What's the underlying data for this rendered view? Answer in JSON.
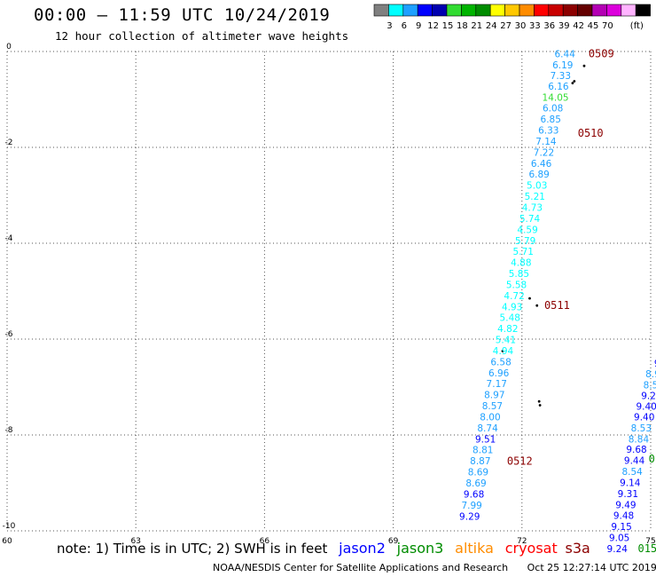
{
  "header": {
    "title": "00:00 – 11:59 UTC 10/24/2019",
    "subtitle": "12 hour collection of altimeter wave heights"
  },
  "colorbar": {
    "colors": [
      "#808080",
      "#00ffff",
      "#1ea0ff",
      "#0000ff",
      "#0000b0",
      "#32dc32",
      "#00b400",
      "#008c00",
      "#ffff00",
      "#ffc800",
      "#ff8c00",
      "#ff0000",
      "#c80000",
      "#8c0000",
      "#640000",
      "#b400b4",
      "#dc00dc",
      "#ffb4ff",
      "#000000"
    ],
    "labels": [
      "3",
      "6",
      "9",
      "12",
      "15",
      "18",
      "21",
      "24",
      "27",
      "30",
      "33",
      "36",
      "39",
      "42",
      "45",
      "70"
    ],
    "unit": "(ft)"
  },
  "chart_data": {
    "type": "scatter",
    "xlim": [
      60,
      75
    ],
    "ylim": [
      -10,
      0
    ],
    "x_ticks": [
      "60",
      "63",
      "66",
      "69",
      "72",
      "75"
    ],
    "y_ticks": [
      "0",
      "-2",
      "-4",
      "-6",
      "-8",
      "-10"
    ],
    "grid": true,
    "series": [
      {
        "name": "jason3",
        "color_key": "swh-binned",
        "points": [
          {
            "x": 73.0,
            "y": -0.05,
            "v": "6.44",
            "c": "#1ea0ff"
          },
          {
            "x": 72.95,
            "y": -0.28,
            "v": "6.19",
            "c": "#1ea0ff"
          },
          {
            "x": 72.9,
            "y": -0.5,
            "v": "7.33",
            "c": "#1ea0ff"
          },
          {
            "x": 72.85,
            "y": -0.72,
            "v": "6.16",
            "c": "#1ea0ff"
          },
          {
            "x": 72.78,
            "y": -0.95,
            "v": "14.05",
            "c": "#32dc32"
          },
          {
            "x": 72.72,
            "y": -1.18,
            "v": "6.08",
            "c": "#1ea0ff"
          },
          {
            "x": 72.67,
            "y": -1.41,
            "v": "6.85",
            "c": "#1ea0ff"
          },
          {
            "x": 72.62,
            "y": -1.64,
            "v": "6.33",
            "c": "#1ea0ff"
          },
          {
            "x": 72.56,
            "y": -1.87,
            "v": "7.14",
            "c": "#1ea0ff"
          },
          {
            "x": 72.51,
            "y": -2.1,
            "v": "7.22",
            "c": "#1ea0ff"
          },
          {
            "x": 72.45,
            "y": -2.33,
            "v": "6.46",
            "c": "#1ea0ff"
          },
          {
            "x": 72.4,
            "y": -2.56,
            "v": "6.89",
            "c": "#1ea0ff"
          },
          {
            "x": 72.35,
            "y": -2.79,
            "v": "5.03",
            "c": "#00ffff"
          },
          {
            "x": 72.3,
            "y": -3.02,
            "v": "5.21",
            "c": "#00ffff"
          },
          {
            "x": 72.24,
            "y": -3.25,
            "v": "4.73",
            "c": "#00ffff"
          },
          {
            "x": 72.18,
            "y": -3.48,
            "v": "5.74",
            "c": "#00ffff"
          },
          {
            "x": 72.13,
            "y": -3.71,
            "v": "4.59",
            "c": "#00ffff"
          },
          {
            "x": 72.08,
            "y": -3.94,
            "v": "5.79",
            "c": "#00ffff"
          },
          {
            "x": 72.03,
            "y": -4.17,
            "v": "5.71",
            "c": "#00ffff"
          },
          {
            "x": 71.98,
            "y": -4.4,
            "v": "4.88",
            "c": "#00ffff"
          },
          {
            "x": 71.93,
            "y": -4.63,
            "v": "5.85",
            "c": "#00ffff"
          },
          {
            "x": 71.87,
            "y": -4.86,
            "v": "5.58",
            "c": "#00ffff"
          },
          {
            "x": 71.82,
            "y": -5.09,
            "v": "4.72",
            "c": "#00ffff"
          },
          {
            "x": 71.77,
            "y": -5.32,
            "v": "4.93",
            "c": "#00ffff"
          },
          {
            "x": 71.72,
            "y": -5.55,
            "v": "5.48",
            "c": "#00ffff"
          },
          {
            "x": 71.67,
            "y": -5.78,
            "v": "4.82",
            "c": "#00ffff"
          },
          {
            "x": 71.62,
            "y": -6.01,
            "v": "5.41",
            "c": "#00ffff"
          },
          {
            "x": 71.56,
            "y": -6.24,
            "v": "4.94",
            "c": "#00ffff"
          },
          {
            "x": 71.51,
            "y": -6.47,
            "v": "6.58",
            "c": "#1ea0ff"
          },
          {
            "x": 71.46,
            "y": -6.7,
            "v": "6.96",
            "c": "#1ea0ff"
          },
          {
            "x": 71.41,
            "y": -6.93,
            "v": "7.17",
            "c": "#1ea0ff"
          },
          {
            "x": 71.36,
            "y": -7.16,
            "v": "8.97",
            "c": "#1ea0ff"
          },
          {
            "x": 71.31,
            "y": -7.39,
            "v": "8.57",
            "c": "#1ea0ff"
          },
          {
            "x": 71.26,
            "y": -7.62,
            "v": "8.00",
            "c": "#1ea0ff"
          },
          {
            "x": 71.2,
            "y": -7.85,
            "v": "8.74",
            "c": "#1ea0ff"
          },
          {
            "x": 71.15,
            "y": -8.08,
            "v": "9.51",
            "c": "#0000ff"
          },
          {
            "x": 71.09,
            "y": -8.31,
            "v": "8.81",
            "c": "#1ea0ff"
          },
          {
            "x": 71.03,
            "y": -8.54,
            "v": "8.87",
            "c": "#1ea0ff"
          },
          {
            "x": 70.98,
            "y": -8.77,
            "v": "8.69",
            "c": "#1ea0ff"
          },
          {
            "x": 70.93,
            "y": -9.0,
            "v": "8.69",
            "c": "#1ea0ff"
          },
          {
            "x": 70.88,
            "y": -9.23,
            "v": "9.68",
            "c": "#0000ff"
          },
          {
            "x": 70.83,
            "y": -9.46,
            "v": "7.99",
            "c": "#1ea0ff"
          },
          {
            "x": 70.78,
            "y": -9.69,
            "v": "9.29",
            "c": "#0000ff"
          }
        ]
      },
      {
        "name": "jason3-east",
        "color_key": "swh-binned",
        "points": [
          {
            "x": 75.2,
            "y": -6.28,
            "v": "8",
            "c": "#1ea0ff"
          },
          {
            "x": 75.15,
            "y": -6.5,
            "v": "9",
            "c": "#0000ff"
          },
          {
            "x": 75.05,
            "y": -6.72,
            "v": "8.9",
            "c": "#1ea0ff"
          },
          {
            "x": 75.0,
            "y": -6.95,
            "v": "8.5",
            "c": "#1ea0ff"
          },
          {
            "x": 74.95,
            "y": -7.18,
            "v": "9.2",
            "c": "#0000ff"
          },
          {
            "x": 74.9,
            "y": -7.4,
            "v": "9.40",
            "c": "#0000ff"
          },
          {
            "x": 74.85,
            "y": -7.62,
            "v": "9.40",
            "c": "#0000ff"
          },
          {
            "x": 74.78,
            "y": -7.85,
            "v": "8.53",
            "c": "#1ea0ff"
          },
          {
            "x": 74.72,
            "y": -8.08,
            "v": "8.84",
            "c": "#1ea0ff"
          },
          {
            "x": 74.67,
            "y": -8.3,
            "v": "9.68",
            "c": "#0000ff"
          },
          {
            "x": 74.62,
            "y": -8.53,
            "v": "9.44",
            "c": "#0000ff"
          },
          {
            "x": 74.57,
            "y": -8.76,
            "v": "8.54",
            "c": "#1ea0ff"
          },
          {
            "x": 74.52,
            "y": -8.99,
            "v": "9.14",
            "c": "#0000ff"
          },
          {
            "x": 74.47,
            "y": -9.22,
            "v": "9.31",
            "c": "#0000ff"
          },
          {
            "x": 74.42,
            "y": -9.45,
            "v": "9.49",
            "c": "#0000ff"
          },
          {
            "x": 74.37,
            "y": -9.68,
            "v": "9.48",
            "c": "#0000ff"
          },
          {
            "x": 74.32,
            "y": -9.91,
            "v": "9.15",
            "c": "#0000ff"
          },
          {
            "x": 74.27,
            "y": -10.14,
            "v": "9.05",
            "c": "#0000ff"
          },
          {
            "x": 74.22,
            "y": -10.37,
            "v": "9.24",
            "c": "#0000ff"
          }
        ]
      }
    ],
    "time_labels": [
      {
        "x": 73.55,
        "y": -0.05,
        "text": "0509",
        "color": "#8c0000"
      },
      {
        "x": 73.3,
        "y": -1.7,
        "text": "0510",
        "color": "#8c0000"
      },
      {
        "x": 72.52,
        "y": -5.3,
        "text": "0511",
        "color": "#8c0000"
      },
      {
        "x": 71.65,
        "y": -8.55,
        "text": "0512",
        "color": "#8c0000"
      },
      {
        "x": 74.95,
        "y": -8.5,
        "text": "01",
        "color": "#008c00"
      },
      {
        "x": 74.7,
        "y": -10.37,
        "text": "0151",
        "color": "#008c00"
      }
    ]
  },
  "legend": {
    "note": "note: 1) Time is in UTC; 2) SWH is in feet",
    "satellites": [
      {
        "name": "jason2",
        "color": "#0000ff"
      },
      {
        "name": "jason3",
        "color": "#008c00"
      },
      {
        "name": "altika",
        "color": "#ff8c00"
      },
      {
        "name": "cryosat",
        "color": "#ff0000"
      },
      {
        "name": "s3a",
        "color": "#8c0000"
      }
    ]
  },
  "footer": {
    "credit": "NOAA/NESDIS Center for Satellite Applications and Research",
    "generated": "Oct 25 12:27:14 UTC 2019"
  }
}
